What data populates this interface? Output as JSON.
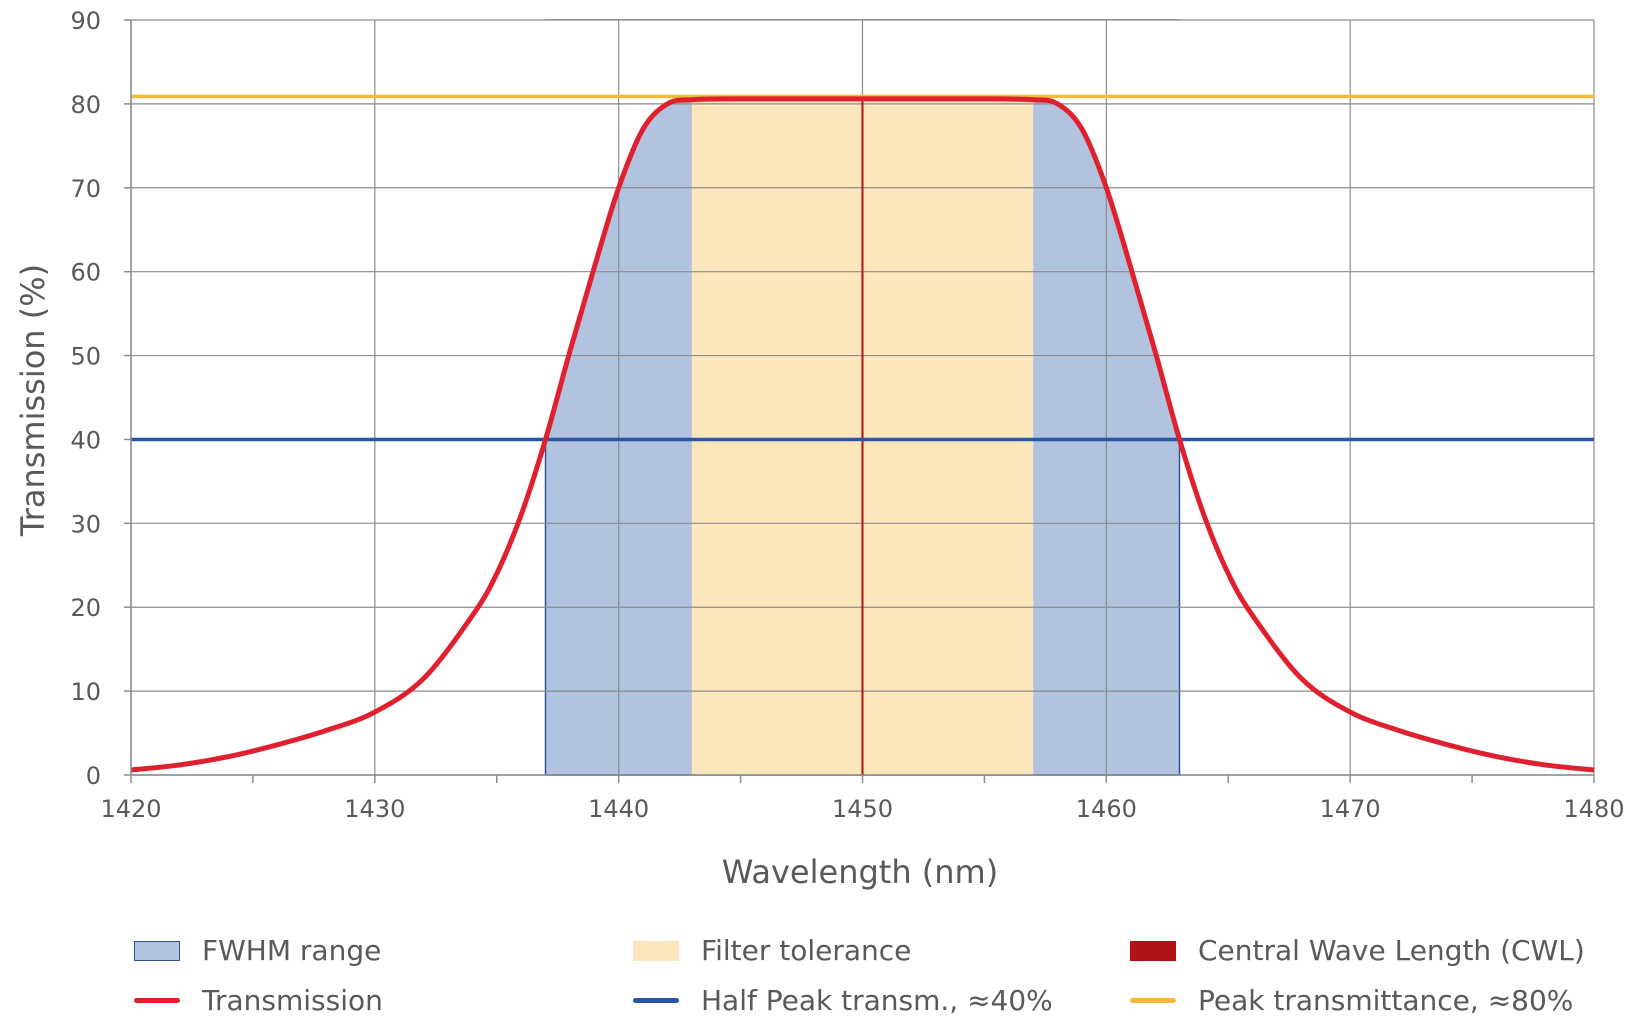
{
  "chart_data": {
    "type": "line",
    "xlabel": "Wavelength (nm)",
    "ylabel": "Transmission (%)",
    "xlim": [
      1420,
      1480
    ],
    "ylim": [
      0,
      90
    ],
    "x_ticks": [
      1420,
      1430,
      1440,
      1450,
      1460,
      1470,
      1480
    ],
    "y_ticks": [
      0,
      10,
      20,
      30,
      40,
      50,
      60,
      70,
      80,
      90
    ],
    "grid": true,
    "legend_position": "bottom",
    "series": [
      {
        "name": "Transmission",
        "color": "#e0202e",
        "x": [
          1420,
          1422,
          1424,
          1426,
          1428,
          1430,
          1432,
          1434,
          1435,
          1436,
          1437,
          1438,
          1439,
          1440,
          1441,
          1442,
          1443,
          1445,
          1450,
          1455,
          1457,
          1458,
          1459,
          1460,
          1461,
          1462,
          1463,
          1464,
          1465,
          1466,
          1468,
          1470,
          1472,
          1474,
          1476,
          1478,
          1480
        ],
        "y": [
          0.6,
          1.2,
          2.2,
          3.6,
          5.3,
          7.5,
          11.5,
          19,
          24,
          31,
          40,
          50.5,
          60.5,
          70,
          77,
          80,
          80.5,
          80.6,
          80.6,
          80.6,
          80.5,
          80,
          77,
          70,
          60.5,
          50.5,
          40,
          31,
          24,
          19,
          11.5,
          7.5,
          5.3,
          3.6,
          2.2,
          1.2,
          0.6
        ]
      },
      {
        "name": "Half Peak transm., ≈40%",
        "color": "#2a56a4",
        "x": [
          1420,
          1480
        ],
        "y": [
          40,
          40
        ]
      },
      {
        "name": "Peak transmittance, ≈80%",
        "color": "#f5b83a",
        "x": [
          1420,
          1480
        ],
        "y": [
          80.9,
          80.9
        ]
      }
    ],
    "regions": [
      {
        "name": "FWHM range",
        "x_from": 1437,
        "x_to": 1463,
        "fill": "#b1c3de",
        "stroke": "#2f5597"
      },
      {
        "name": "Filter tolerance",
        "x_from": 1443,
        "x_to": 1457,
        "fill": "#fce6bb"
      }
    ],
    "cwl": {
      "name": "Central Wave Length (CWL)",
      "x": 1450,
      "color": "#b01216"
    }
  },
  "legend": {
    "fwhm": "FWHM range",
    "tolerance": "Filter tolerance",
    "cwl": "Central Wave Length (CWL)",
    "transmission": "Transmission",
    "half_peak": "Half Peak transm., ≈40%",
    "peak": "Peak transmittance, ≈80%"
  },
  "colors": {
    "fwhm_fill": "#b1c3de",
    "fwhm_border": "#2f5597",
    "tolerance_fill": "#fce6bb",
    "cwl": "#b01216",
    "transmission": "#e0202e",
    "half_peak": "#2a56a4",
    "peak": "#f5b83a"
  }
}
